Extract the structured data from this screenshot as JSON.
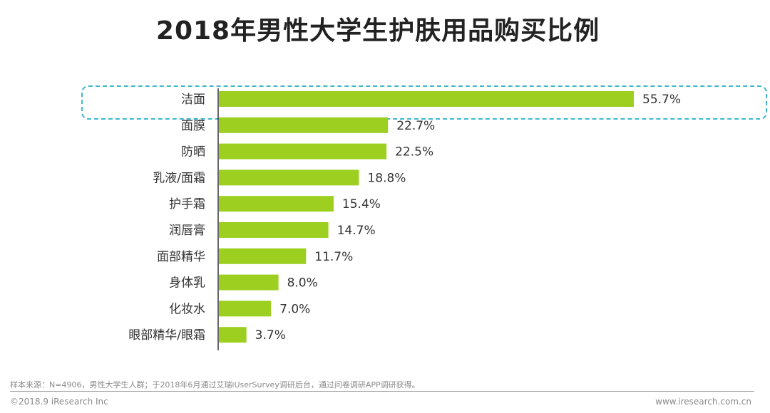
{
  "chart_data": {
    "type": "bar",
    "orientation": "horizontal",
    "title": "2018年男性大学生护肤用品购买比例",
    "categories": [
      "洁面",
      "面膜",
      "防晒",
      "乳液/面霜",
      "护手霜",
      "润唇膏",
      "面部精华",
      "身体乳",
      "化妆水",
      "眼部精华/眼霜"
    ],
    "values": [
      55.7,
      22.7,
      22.5,
      18.8,
      15.4,
      14.7,
      11.7,
      8.0,
      7.0,
      3.7
    ],
    "labels": [
      "55.7%",
      "22.7%",
      "22.5%",
      "18.8%",
      "15.4%",
      "14.7%",
      "11.7%",
      "8.0%",
      "7.0%",
      "3.7%"
    ],
    "unit": "%",
    "xlim": [
      0,
      55.7
    ],
    "highlighted_category": "洁面",
    "bar_color": "#9dcf21",
    "axis_color": "#333333",
    "xlabel": "",
    "ylabel": ""
  },
  "footer": {
    "source": "样本来源：N=4906，男性大学生人群；于2018年6月通过艾瑞iUserSurvey调研后台，通过问卷调研APP调研获得。",
    "copyright": "©2018.9 iResearch Inc",
    "url": "www.iresearch.com.cn"
  },
  "colors": {
    "highlight_border": "#3fb8c9"
  }
}
